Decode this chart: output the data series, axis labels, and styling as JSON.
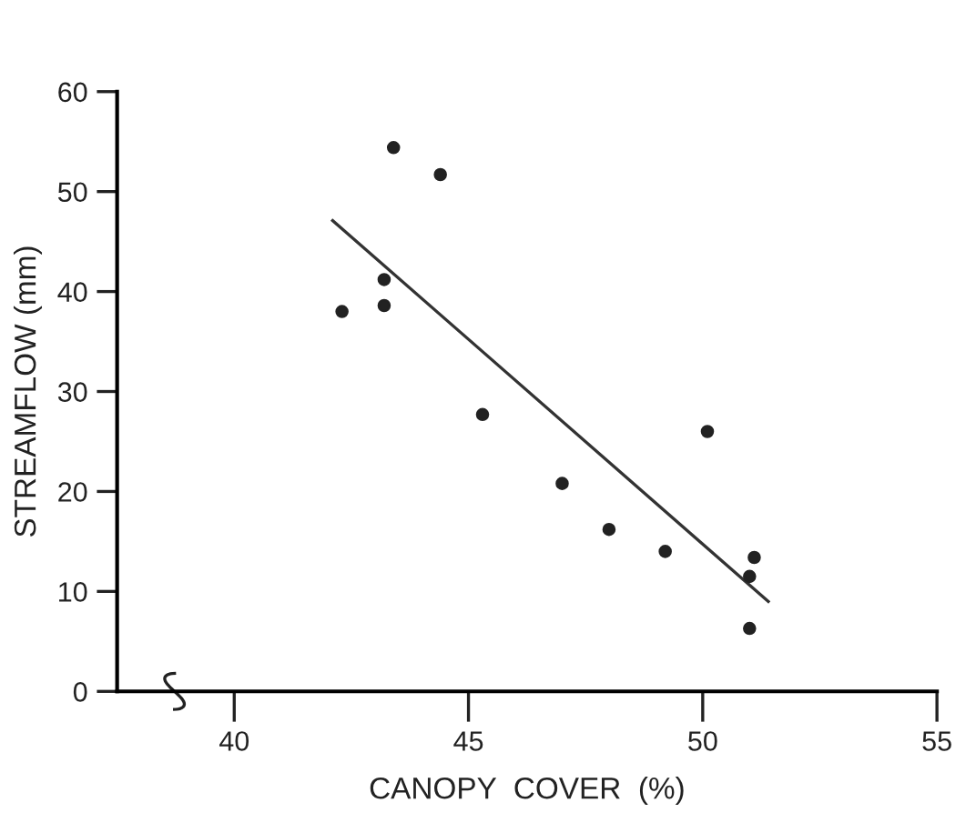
{
  "chart_data": {
    "type": "scatter",
    "xlabel": "CANOPY  COVER  (%)",
    "ylabel": "STREAMFLOW (mm)",
    "xlim": [
      37.5,
      55
    ],
    "ylim": [
      0,
      60
    ],
    "xticks": [
      40,
      45,
      50,
      55
    ],
    "yticks": [
      0,
      10,
      20,
      30,
      40,
      50,
      60
    ],
    "grid": false,
    "marker": "circle",
    "series": [
      {
        "color": "#222222",
        "x": [
          42.3,
          43.2,
          43.2,
          43.4,
          44.4,
          45.3,
          47.0,
          48.0,
          49.2,
          50.1,
          51.1,
          51.0,
          51.0
        ],
        "values": [
          38.0,
          41.2,
          38.6,
          54.4,
          51.7,
          27.7,
          20.8,
          16.2,
          14.0,
          26.0,
          13.4,
          11.5,
          6.3
        ]
      },
      {
        "type": "line",
        "color": "#333333",
        "x": [
          42.1,
          51.4
        ],
        "values": [
          47.1,
          9.0
        ],
        "marker": "none",
        "line_style": "solid"
      }
    ]
  }
}
